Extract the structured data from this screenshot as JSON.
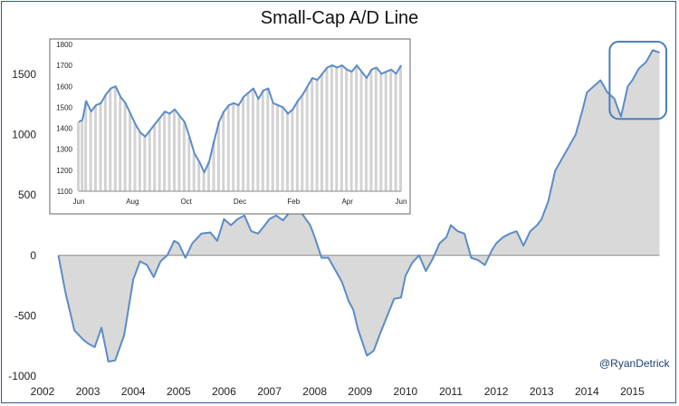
{
  "chart_data": [
    {
      "type": "area",
      "title": "Small-Cap A/D Line",
      "xlabel": "",
      "ylabel": "",
      "xlim": [
        2002,
        2015.75
      ],
      "ylim": [
        -1000,
        1800
      ],
      "y_ticks": [
        -1000,
        -500,
        0,
        500,
        1000,
        1500
      ],
      "x_ticks": [
        "2002",
        "2003",
        "2004",
        "2005",
        "2006",
        "2007",
        "2008",
        "2009",
        "2010",
        "2011",
        "2012",
        "2013",
        "2014",
        "2015"
      ],
      "grid": false,
      "colors": {
        "line": "#5b8cc6",
        "fill": "#d9d9d9",
        "highlight_box": "#4a7fc1",
        "frame": "#2e5a9a"
      },
      "series": [
        {
          "x": [
            2002.35,
            2002.5,
            2002.7,
            2002.9,
            2003.0,
            2003.15,
            2003.3,
            2003.45,
            2003.6,
            2003.8,
            2004.0,
            2004.15,
            2004.3,
            2004.45,
            2004.6,
            2004.75,
            2004.9,
            2005.0,
            2005.15,
            2005.3,
            2005.5,
            2005.7,
            2005.85,
            2006.0,
            2006.15,
            2006.3,
            2006.45,
            2006.6,
            2006.75,
            2006.9,
            2007.0,
            2007.15,
            2007.3,
            2007.45,
            2007.6,
            2007.75,
            2007.9,
            2008.0,
            2008.15,
            2008.3,
            2008.45,
            2008.6,
            2008.75,
            2008.85,
            2008.95,
            2009.05,
            2009.15,
            2009.3,
            2009.45,
            2009.6,
            2009.75,
            2009.9,
            2010.0,
            2010.15,
            2010.3,
            2010.45,
            2010.6,
            2010.75,
            2010.9,
            2011.0,
            2011.15,
            2011.3,
            2011.45,
            2011.6,
            2011.75,
            2011.9,
            2012.0,
            2012.15,
            2012.3,
            2012.45,
            2012.6,
            2012.75,
            2012.9,
            2013.0,
            2013.15,
            2013.3,
            2013.45,
            2013.6,
            2013.75,
            2013.9,
            2014.0,
            2014.15,
            2014.3,
            2014.45,
            2014.6,
            2014.75,
            2014.9,
            2015.0,
            2015.15,
            2015.3,
            2015.45,
            2015.6
          ],
          "y": [
            0,
            -300,
            -620,
            -700,
            -730,
            -760,
            -600,
            -880,
            -870,
            -660,
            -200,
            -50,
            -80,
            -180,
            -50,
            0,
            120,
            100,
            -20,
            100,
            180,
            190,
            120,
            300,
            250,
            300,
            330,
            200,
            180,
            250,
            300,
            330,
            290,
            360,
            400,
            330,
            250,
            150,
            -20,
            -20,
            -120,
            -220,
            -380,
            -450,
            -610,
            -720,
            -830,
            -790,
            -640,
            -500,
            -360,
            -350,
            -170,
            -60,
            0,
            -130,
            -30,
            100,
            150,
            250,
            200,
            180,
            -20,
            -40,
            -80,
            40,
            100,
            150,
            180,
            200,
            80,
            200,
            250,
            300,
            450,
            700,
            800,
            900,
            1000,
            1200,
            1350,
            1400,
            1450,
            1350,
            1300,
            1150,
            1400,
            1450,
            1550,
            1600,
            1700,
            1680
          ]
        }
      ],
      "highlight": {
        "x": [
          2014.5,
          2015.75
        ],
        "y": [
          1130,
          1770
        ]
      },
      "credit": "@RyanDetrick"
    },
    {
      "type": "bar",
      "ylim": [
        1100,
        1800
      ],
      "y_ticks": [
        1100,
        1200,
        1300,
        1400,
        1500,
        1600,
        1700,
        1800
      ],
      "x_ticks": [
        "Jun",
        "Aug",
        "Oct",
        "Dec",
        "Feb",
        "Apr",
        "Jun"
      ],
      "x": [
        0,
        3,
        6,
        10,
        14,
        18,
        22,
        26,
        30,
        34,
        38,
        42,
        46,
        50,
        54,
        58,
        62,
        66,
        70,
        74,
        78,
        82,
        86,
        90,
        94,
        98,
        102,
        106,
        110,
        114,
        118,
        122,
        126,
        130,
        134,
        138,
        142,
        146,
        150,
        154,
        158,
        162,
        166,
        170,
        174,
        178,
        182,
        186,
        190,
        194,
        198,
        202,
        206,
        210,
        214,
        218,
        222,
        226,
        230,
        234,
        238,
        242,
        246,
        250,
        254,
        258,
        262
      ],
      "values": [
        1430,
        1440,
        1530,
        1480,
        1510,
        1520,
        1560,
        1590,
        1600,
        1550,
        1520,
        1470,
        1420,
        1380,
        1360,
        1390,
        1420,
        1450,
        1480,
        1470,
        1490,
        1460,
        1430,
        1360,
        1280,
        1240,
        1190,
        1240,
        1340,
        1430,
        1480,
        1510,
        1520,
        1510,
        1550,
        1570,
        1590,
        1540,
        1580,
        1590,
        1520,
        1510,
        1500,
        1470,
        1490,
        1530,
        1560,
        1600,
        1640,
        1630,
        1660,
        1690,
        1700,
        1690,
        1700,
        1680,
        1670,
        1700,
        1670,
        1640,
        1680,
        1690,
        1660,
        1670,
        1680,
        1660,
        1700
      ]
    }
  ]
}
